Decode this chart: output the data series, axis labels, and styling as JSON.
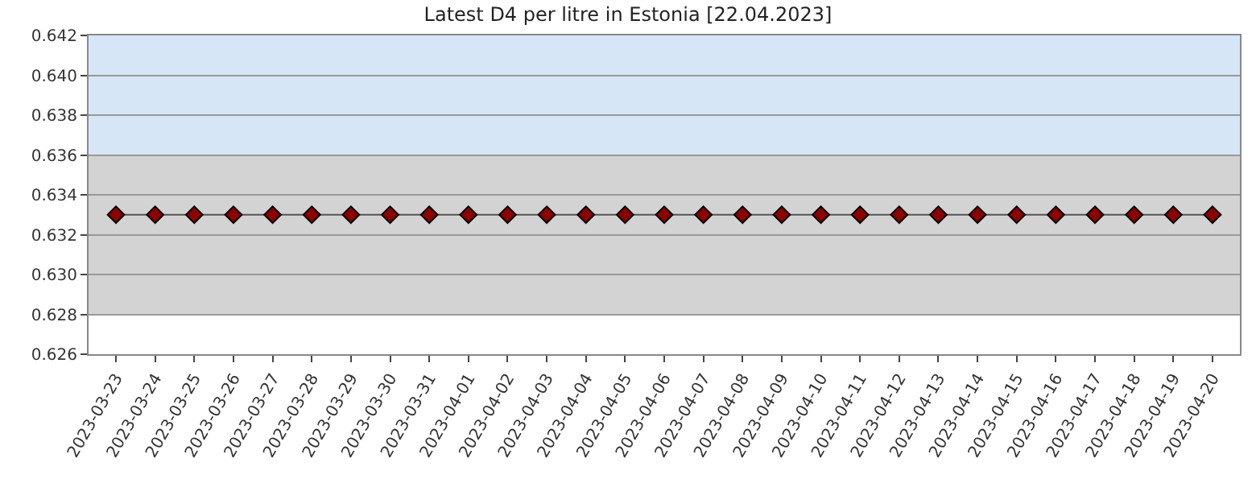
{
  "chart_data": {
    "type": "line",
    "title": "Latest D4 per litre in Estonia [22.04.2023]",
    "categories": [
      "2023-03-23",
      "2023-03-24",
      "2023-03-25",
      "2023-03-26",
      "2023-03-27",
      "2023-03-28",
      "2023-03-29",
      "2023-03-30",
      "2023-03-31",
      "2023-04-01",
      "2023-04-02",
      "2023-04-03",
      "2023-04-04",
      "2023-04-05",
      "2023-04-06",
      "2023-04-07",
      "2023-04-08",
      "2023-04-09",
      "2023-04-10",
      "2023-04-11",
      "2023-04-12",
      "2023-04-13",
      "2023-04-14",
      "2023-04-15",
      "2023-04-16",
      "2023-04-17",
      "2023-04-18",
      "2023-04-19",
      "2023-04-20"
    ],
    "series": [
      {
        "color": "#8b0000",
        "values": [
          0.633,
          0.633,
          0.633,
          0.633,
          0.633,
          0.633,
          0.633,
          0.633,
          0.633,
          0.633,
          0.633,
          0.633,
          0.633,
          0.633,
          0.633,
          0.633,
          0.633,
          0.633,
          0.633,
          0.633,
          0.633,
          0.633,
          0.633,
          0.633,
          0.633,
          0.633,
          0.633,
          0.633,
          0.633
        ]
      }
    ],
    "ylim": [
      0.626,
      0.642
    ],
    "yticks": [
      0.626,
      0.628,
      {
        "value": 0.63,
        "label": "0.630"
      },
      0.632,
      0.634,
      0.636,
      0.638,
      {
        "value": 0.64,
        "label": "0.640"
      },
      0.642
    ],
    "bands": [
      {
        "axis": "y",
        "from": 0.628,
        "to": 0.636,
        "color": "#d3d3d3"
      },
      {
        "axis": "y",
        "from": 0.636,
        "to": 0.642,
        "color": "#d6e6f7"
      }
    ],
    "grid": "y",
    "marker": "diamond",
    "line_style": "solid",
    "legend": false
  }
}
